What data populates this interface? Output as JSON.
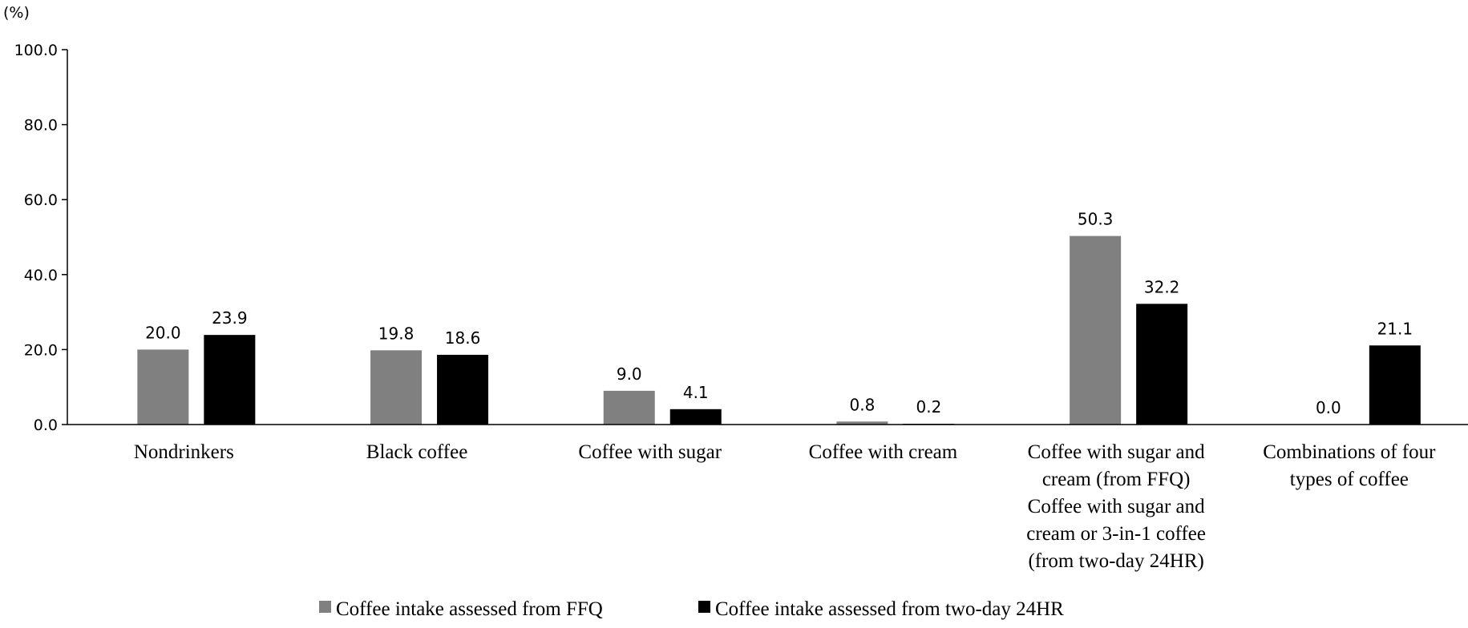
{
  "chart_data": {
    "type": "bar",
    "ylabel": "(%)",
    "ylim": [
      0,
      100
    ],
    "yticks": [
      "0.0",
      "20.0",
      "40.0",
      "60.0",
      "80.0",
      "100.0"
    ],
    "categories": [
      [
        "Nondrinkers"
      ],
      [
        "Black coffee"
      ],
      [
        "Coffee with sugar"
      ],
      [
        "Coffee with cream"
      ],
      [
        "Coffee with sugar and",
        "cream (from FFQ)",
        "Coffee with sugar and",
        "cream or 3-in-1 coffee",
        "(from two-day 24HR)"
      ],
      [
        "Combinations of four",
        "types of coffee"
      ]
    ],
    "series": [
      {
        "name": "Coffee intake assessed from FFQ",
        "color": "#808080",
        "values": [
          20.0,
          19.8,
          9.0,
          0.8,
          50.3,
          0.0
        ],
        "labels": [
          "20.0",
          "19.8",
          "9.0",
          "0.8",
          "50.3",
          "0.0"
        ]
      },
      {
        "name": "Coffee intake assessed from two-day 24HR",
        "color": "#000000",
        "values": [
          23.9,
          18.6,
          4.1,
          0.2,
          32.2,
          21.1
        ],
        "labels": [
          "23.9",
          "18.6",
          "4.1",
          "0.2",
          "32.2",
          "21.1"
        ]
      }
    ],
    "legend_position": "bottom",
    "grid": false
  }
}
